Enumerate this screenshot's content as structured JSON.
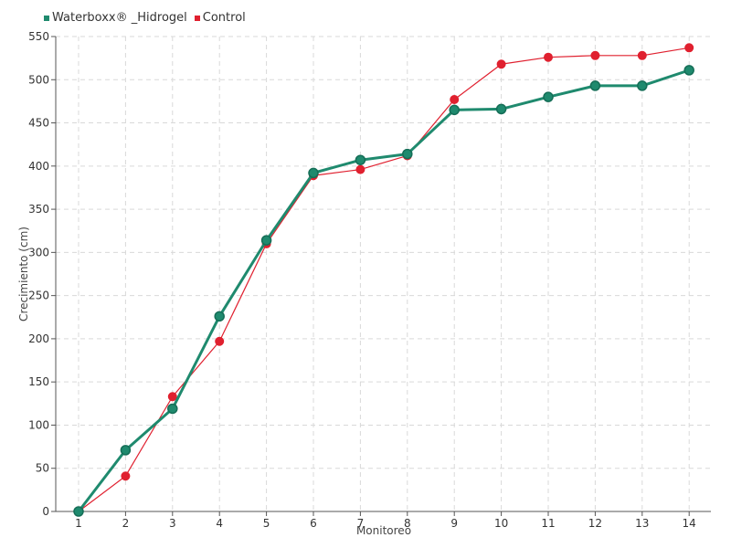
{
  "chart_data": {
    "type": "line",
    "title": "",
    "xlabel": "Monitoreo",
    "ylabel": "Crecimiento (cm)",
    "categories": [
      "1",
      "2",
      "3",
      "4",
      "5",
      "6",
      "7",
      "8",
      "9",
      "10",
      "11",
      "12",
      "13",
      "14"
    ],
    "ylim": [
      0,
      550
    ],
    "yticks": [
      0,
      50,
      100,
      150,
      200,
      250,
      300,
      350,
      400,
      450,
      500,
      550
    ],
    "grid": true,
    "legend_position": "top-left",
    "series": [
      {
        "name": "Waterboxx® _Hidrogel",
        "color": "#1f8a6e",
        "values": [
          0,
          71,
          119,
          226,
          314,
          392,
          407,
          414,
          465,
          466,
          480,
          493,
          493,
          511
        ]
      },
      {
        "name": "Control",
        "color": "#e0202f",
        "values": [
          0,
          41,
          133,
          197,
          310,
          389,
          396,
          412,
          477,
          518,
          526,
          528,
          528,
          537
        ]
      }
    ]
  }
}
